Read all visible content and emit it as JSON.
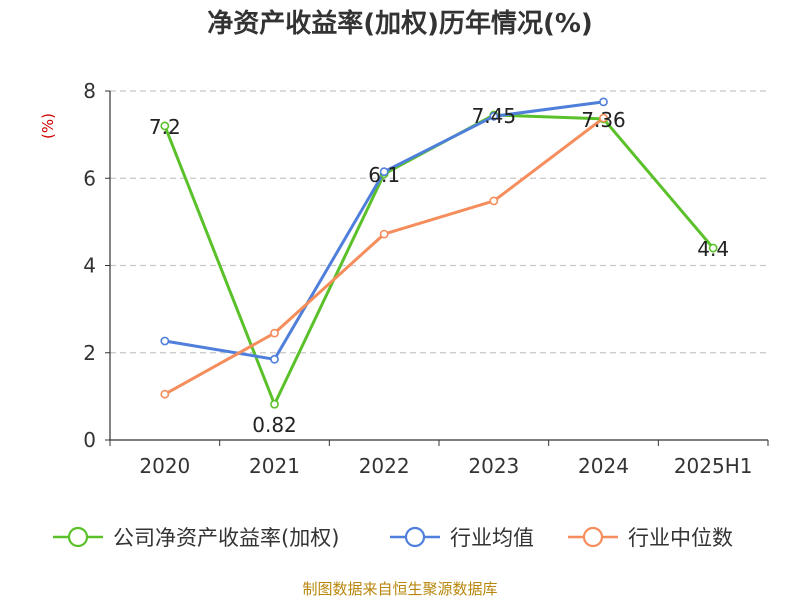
{
  "chart_data": {
    "type": "line",
    "title": "净资产收益率(加权)历年情况(%)",
    "ylabel": "(%)",
    "xlabel": "",
    "categories": [
      "2020",
      "2021",
      "2022",
      "2023",
      "2024",
      "2025H1"
    ],
    "ylim": [
      0,
      8
    ],
    "yticks": [
      "0",
      "2",
      "4",
      "6",
      "8"
    ],
    "grid": true,
    "legend_position": "bottom",
    "series": [
      {
        "name": "公司净资产收益率(加权)",
        "color": "#5ac12a",
        "values": [
          7.2,
          0.82,
          6.1,
          7.45,
          7.36,
          4.4
        ],
        "labels": [
          "7.2",
          "0.82",
          "6.1",
          "7.45",
          "7.36",
          "4.4"
        ]
      },
      {
        "name": "行业均值",
        "color": "#4f7fda",
        "values": [
          2.27,
          1.85,
          6.15,
          7.42,
          7.75,
          null
        ],
        "labels": null
      },
      {
        "name": "行业中位数",
        "color": "#f58d5c",
        "values": [
          1.05,
          2.45,
          4.72,
          5.48,
          7.38,
          null
        ],
        "labels": null
      }
    ]
  },
  "source": "制图数据来自恒生聚源数据库"
}
